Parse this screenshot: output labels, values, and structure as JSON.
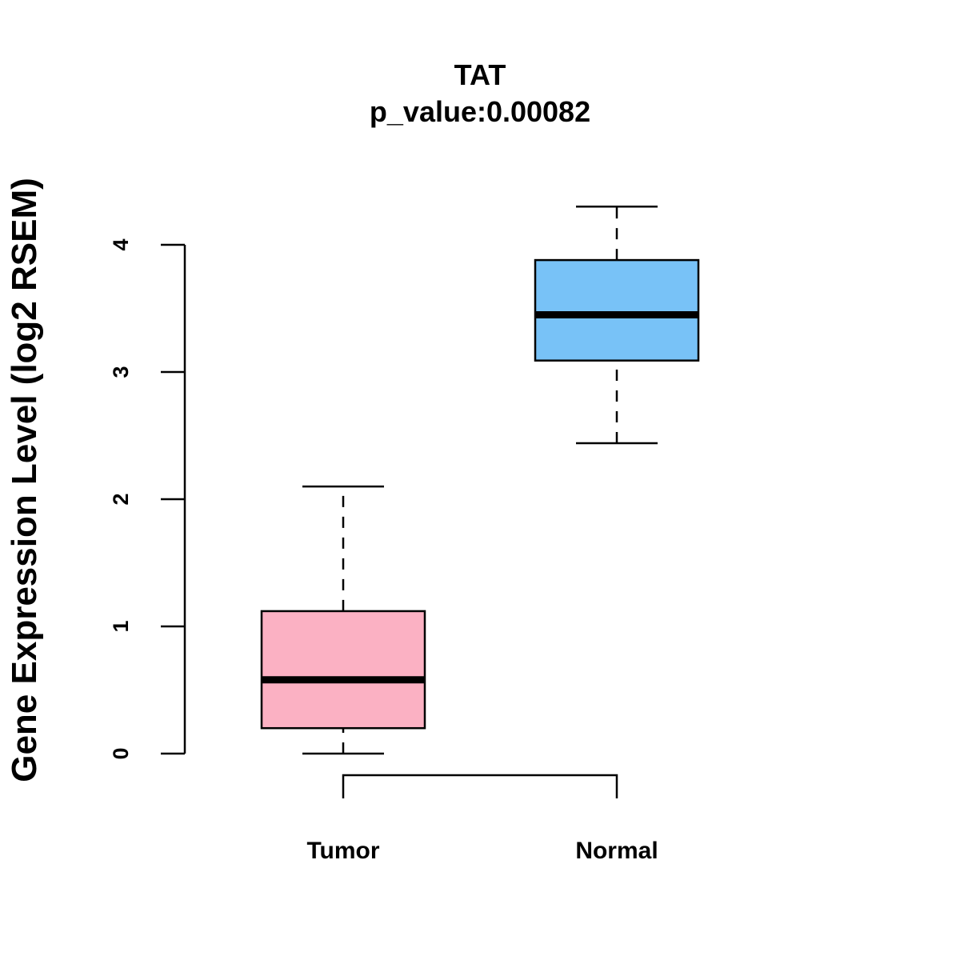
{
  "chart_data": {
    "type": "box",
    "title": "TAT",
    "subtitle": "p_value:0.00082",
    "xlabel": "",
    "ylabel": "Gene Expression Level (log2 RSEM)",
    "ylim": [
      0,
      4
    ],
    "yticks": [
      0,
      1,
      2,
      3,
      4
    ],
    "categories": [
      "Tumor",
      "Normal"
    ],
    "series": [
      {
        "name": "Tumor",
        "min": 0.0,
        "q1": 0.2,
        "median": 0.58,
        "q3": 1.12,
        "max": 2.1,
        "color": "#FBB1C3"
      },
      {
        "name": "Normal",
        "min": 2.44,
        "q1": 3.09,
        "median": 3.45,
        "q3": 3.88,
        "max": 4.3,
        "color": "#78C2F7"
      }
    ],
    "comparison_bracket": [
      "Tumor",
      "Normal"
    ]
  }
}
